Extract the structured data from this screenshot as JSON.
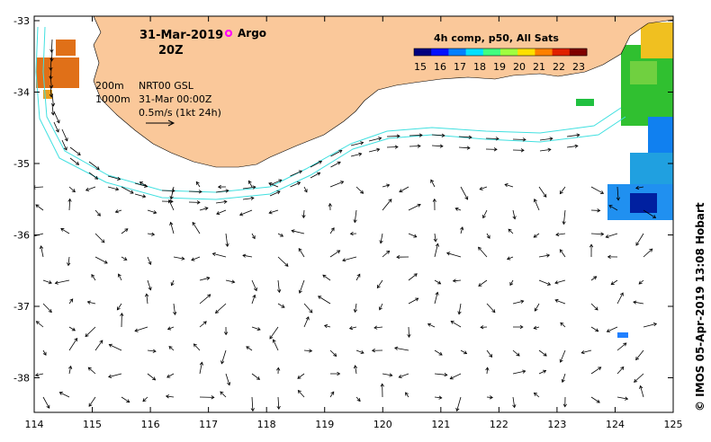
{
  "map": {
    "date": "31-Mar-2019",
    "time": "20Z",
    "argo_label": "Argo",
    "colorbar_title": "4h comp, p50, All Sats",
    "colorbar_ticks": [
      "15",
      "16",
      "17",
      "18",
      "19",
      "20",
      "21",
      "22",
      "23"
    ],
    "colorbar_colors": [
      "#00007f",
      "#0010ff",
      "#0080ff",
      "#00e0ff",
      "#40ff80",
      "#a0ff40",
      "#ffe000",
      "#ff8000",
      "#e02000",
      "#7f0000"
    ],
    "iso_200": "200m",
    "iso_1000": "1000m",
    "product": "NRT00 GSL",
    "ref_time": "31-Mar 00:00Z",
    "scale_label": "0.5m/s (1kt 24h)",
    "credit": "© IMOS 05-Apr-2019 13:08 Hobart",
    "x_ticks": [
      "114",
      "115",
      "116",
      "117",
      "118",
      "119",
      "120",
      "121",
      "122",
      "123",
      "124",
      "125"
    ],
    "y_ticks": [
      "-33",
      "-34",
      "-35",
      "-36",
      "-37",
      "-38"
    ],
    "colors": {
      "land": "#fac89a",
      "shelf": "#40e0e0",
      "argo": "#ff00ff"
    }
  }
}
